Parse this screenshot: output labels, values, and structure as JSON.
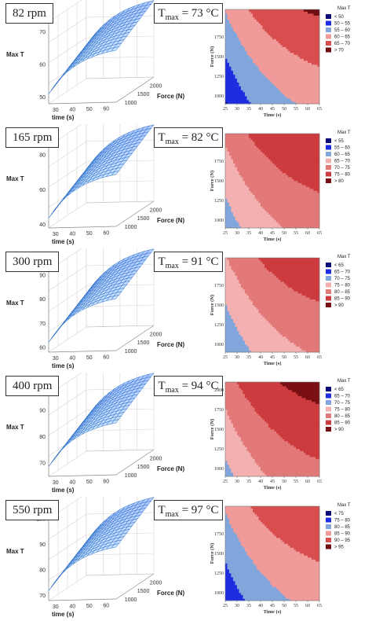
{
  "chart_data": [
    {
      "type": "contour",
      "panel_label": "82 rpm",
      "tmax_symbol": "T",
      "tmax_sub": "max",
      "tmax_value": " = 73 °C",
      "surface": {
        "zlabel": "Max T",
        "xlabel": "time (s)",
        "ylabel": "Force (N)",
        "z_ticks": [
          "50",
          "60",
          "70"
        ],
        "x_ticks": [
          "30",
          "40",
          "50",
          "60"
        ],
        "y_ticks": [
          "1000",
          "1500",
          "2000"
        ],
        "zlim": [
          48,
          73
        ]
      },
      "contour": {
        "xlabel": "Time (s)",
        "ylabel": "Force (N)",
        "x_ticks": [
          "25",
          "30",
          "35",
          "40",
          "45",
          "50",
          "55",
          "60",
          "65"
        ],
        "y_ticks": [
          "1000",
          "1250",
          "1500",
          "1750"
        ],
        "xlim": [
          25,
          65
        ],
        "ylim": [
          900,
          2100
        ],
        "legend_title": "Max T",
        "legend_labels": [
          "< 50",
          "50 – 55",
          "55 – 60",
          "60 – 65",
          "65 – 70",
          "> 70"
        ],
        "colors": [
          "#0a0a7a",
          "#1d2de0",
          "#80a6dc",
          "#f09a9a",
          "#d84d4e",
          "#6e0e12"
        ],
        "levels": [
          50,
          55,
          60,
          65,
          70
        ],
        "zmin": 45,
        "zmax": 73
      }
    },
    {
      "type": "contour",
      "panel_label": "165 rpm",
      "tmax_symbol": "T",
      "tmax_sub": "max",
      "tmax_value": " = 82 °C",
      "surface": {
        "zlabel": "Max T",
        "xlabel": "time (s)",
        "ylabel": "Force (N)",
        "z_ticks": [
          "40",
          "60",
          "80"
        ],
        "x_ticks": [
          "30",
          "40",
          "50",
          "60"
        ],
        "y_ticks": [
          "1000",
          "1500",
          "2000"
        ],
        "zlim": [
          38,
          85
        ]
      },
      "contour": {
        "xlabel": "Time (s)",
        "ylabel": "Force (N)",
        "x_ticks": [
          "25",
          "30",
          "35",
          "40",
          "45",
          "50",
          "55",
          "60",
          "65"
        ],
        "y_ticks": [
          "1000",
          "1250",
          "1500",
          "1750"
        ],
        "xlim": [
          25,
          65
        ],
        "ylim": [
          900,
          2100
        ],
        "legend_title": "Max T",
        "legend_labels": [
          "< 55",
          "55 – 60",
          "60 – 65",
          "65 – 70",
          "70 – 75",
          "75 – 80",
          "> 80"
        ],
        "colors": [
          "#0a0a7a",
          "#1d2de0",
          "#80a6dc",
          "#f2b0b0",
          "#e37878",
          "#cc3b3e",
          "#7a1015"
        ],
        "levels": [
          55,
          60,
          65,
          70,
          75,
          80
        ],
        "zmin": 58,
        "zmax": 82
      }
    },
    {
      "type": "contour",
      "panel_label": "300 rpm",
      "tmax_symbol": "T",
      "tmax_sub": "max",
      "tmax_value": " = 91 °C",
      "surface": {
        "zlabel": "Max T",
        "xlabel": "time (s)",
        "ylabel": "Force (N)",
        "z_ticks": [
          "60",
          "70",
          "80",
          "90"
        ],
        "x_ticks": [
          "30",
          "40",
          "50",
          "60"
        ],
        "y_ticks": [
          "1000",
          "1500",
          "2000"
        ],
        "zlim": [
          58,
          92
        ]
      },
      "contour": {
        "xlabel": "Time (s)",
        "ylabel": "Force (N)",
        "x_ticks": [
          "25",
          "30",
          "35",
          "40",
          "45",
          "50",
          "55",
          "60",
          "65"
        ],
        "y_ticks": [
          "1000",
          "1250",
          "1500",
          "1750"
        ],
        "xlim": [
          25,
          65
        ],
        "ylim": [
          900,
          2100
        ],
        "legend_title": "Max T",
        "legend_labels": [
          "< 65",
          "65 – 70",
          "70 – 75",
          "75 – 80",
          "80 – 85",
          "85 – 90",
          "> 90"
        ],
        "colors": [
          "#0a0a7a",
          "#1d2de0",
          "#80a6dc",
          "#f2b0b0",
          "#e37878",
          "#cc3b3e",
          "#7a1015"
        ],
        "levels": [
          65,
          70,
          75,
          80,
          85,
          90
        ],
        "zmin": 66,
        "zmax": 91
      }
    },
    {
      "type": "contour",
      "panel_label": "400 rpm",
      "tmax_symbol": "T",
      "tmax_sub": "max",
      "tmax_value": " = 94 °C",
      "surface": {
        "zlabel": "Max T",
        "xlabel": "time (s)",
        "ylabel": "Force (N)",
        "z_ticks": [
          "70",
          "80",
          "90"
        ],
        "x_ticks": [
          "30",
          "40",
          "50",
          "60"
        ],
        "y_ticks": [
          "1000",
          "1500",
          "2000"
        ],
        "zlim": [
          65,
          96
        ]
      },
      "contour": {
        "xlabel": "Time (s)",
        "ylabel": "Force (N)",
        "x_ticks": [
          "25",
          "30",
          "35",
          "40",
          "45",
          "50",
          "55",
          "60",
          "65"
        ],
        "y_ticks": [
          "1000",
          "1250",
          "1500",
          "1750",
          "2000"
        ],
        "xlim": [
          25,
          65
        ],
        "ylim": [
          900,
          2100
        ],
        "legend_title": "Max T",
        "legend_labels": [
          "< 65",
          "65 – 70",
          "70 – 75",
          "75 – 80",
          "80 – 85",
          "85 – 90",
          "> 90"
        ],
        "colors": [
          "#0a0a7a",
          "#1d2de0",
          "#80a6dc",
          "#f2b0b0",
          "#e37878",
          "#cc3b3e",
          "#7a1015"
        ],
        "levels": [
          65,
          70,
          75,
          80,
          85,
          90
        ],
        "zmin": 69,
        "zmax": 94
      }
    },
    {
      "type": "contour",
      "panel_label": "550 rpm",
      "tmax_symbol": "T",
      "tmax_sub": "max",
      "tmax_value": " = 97 °C",
      "surface": {
        "zlabel": "Max T",
        "xlabel": "time (s)",
        "ylabel": "Force (N)",
        "z_ticks": [
          "70",
          "80",
          "90",
          "100"
        ],
        "x_ticks": [
          "30",
          "40",
          "50",
          "60"
        ],
        "y_ticks": [
          "1000",
          "1500",
          "2000"
        ],
        "zlim": [
          68,
          100
        ]
      },
      "contour": {
        "xlabel": "Time (s)",
        "ylabel": "Force (N)",
        "x_ticks": [
          "25",
          "30",
          "35",
          "40",
          "45",
          "50",
          "55",
          "60",
          "65"
        ],
        "y_ticks": [
          "1000",
          "1250",
          "1500",
          "1750"
        ],
        "xlim": [
          25,
          65
        ],
        "ylim": [
          900,
          2100
        ],
        "legend_title": "Max T",
        "legend_labels": [
          "< 75",
          "75 – 80",
          "80 – 85",
          "85 – 90",
          "90 – 95",
          "> 95"
        ],
        "colors": [
          "#0a0a7a",
          "#1d2de0",
          "#80a6dc",
          "#f09a9a",
          "#d84d4e",
          "#6e0e12"
        ],
        "levels": [
          75,
          80,
          85,
          90,
          95
        ],
        "zmin": 72,
        "zmax": 97
      }
    }
  ]
}
